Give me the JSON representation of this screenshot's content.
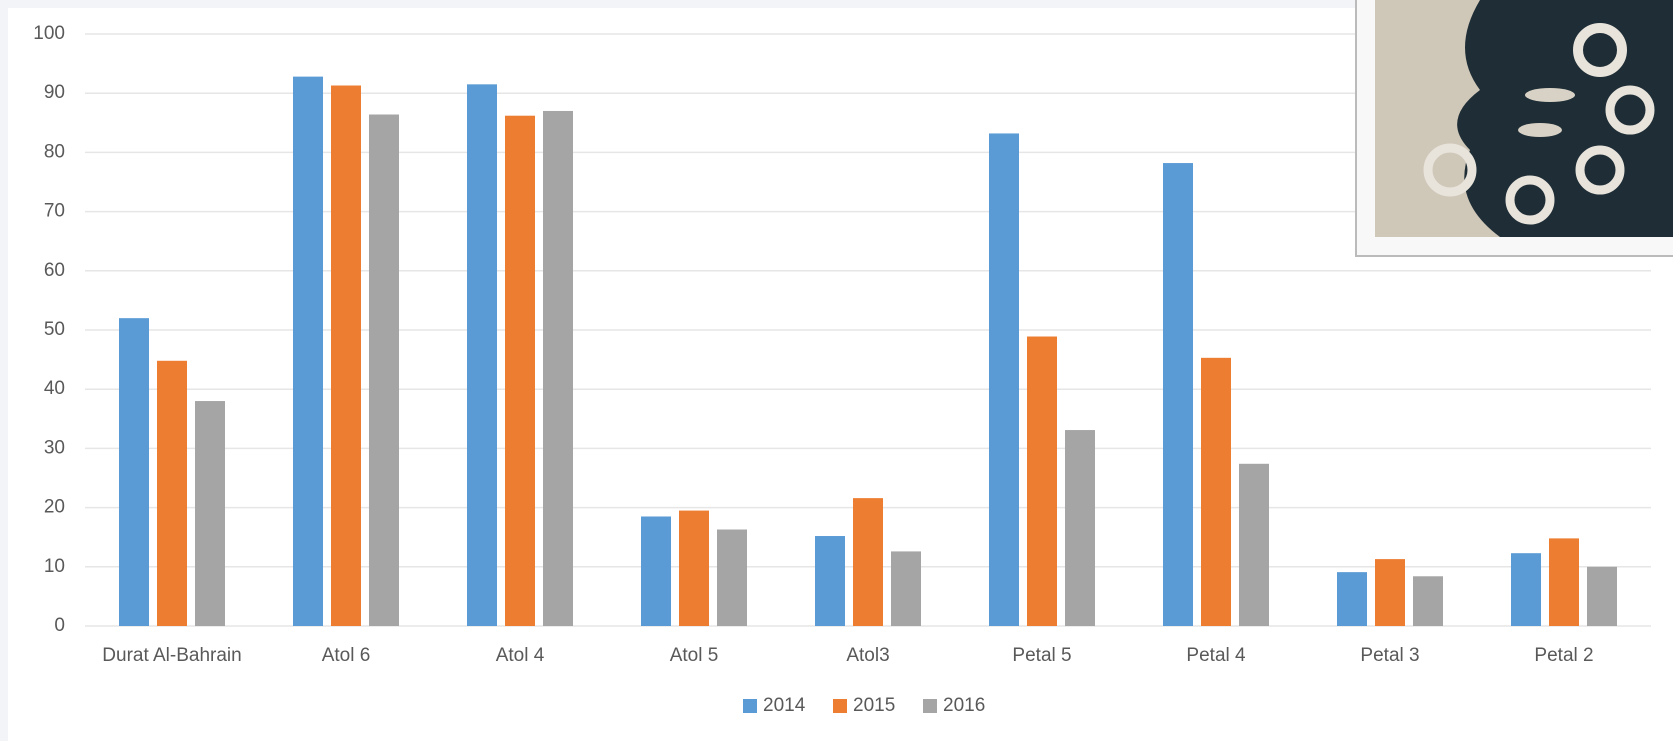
{
  "chart_data": {
    "type": "bar",
    "categories": [
      "Durat Al-Bahrain",
      "Atol 6",
      "Atol 4",
      "Atol 5",
      "Atol3",
      "Petal 5",
      "Petal 4",
      "Petal 3",
      "Petal 2"
    ],
    "series": [
      {
        "name": "2014",
        "color": "#5b9bd5",
        "values": [
          52,
          92.8,
          91.5,
          18.5,
          15.2,
          83.2,
          78.2,
          9.1,
          12.3
        ]
      },
      {
        "name": "2015",
        "color": "#ed7d31",
        "values": [
          44.8,
          91.3,
          86.2,
          19.5,
          21.6,
          48.9,
          45.3,
          11.3,
          14.8
        ]
      },
      {
        "name": "2016",
        "color": "#a5a5a5",
        "values": [
          38,
          86.4,
          87,
          16.3,
          12.6,
          33.1,
          27.4,
          8.4,
          10
        ]
      }
    ],
    "ylim": [
      0,
      100
    ],
    "yticks": [
      0,
      10,
      20,
      30,
      40,
      50,
      60,
      70,
      80,
      90,
      100
    ],
    "grid": true,
    "legend": "bottom"
  }
}
